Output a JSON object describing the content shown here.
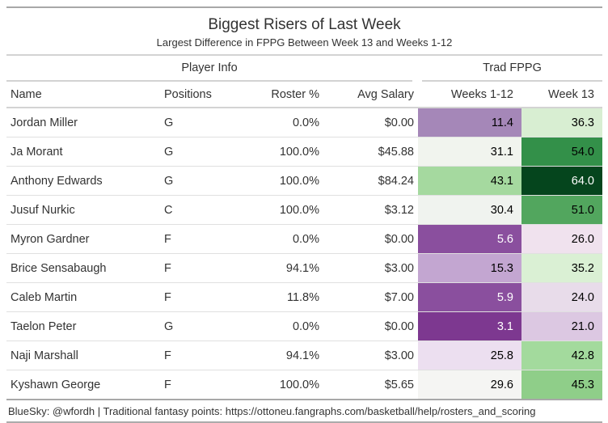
{
  "header": {
    "title": "Biggest Risers of Last Week",
    "subtitle": "Largest Difference in FPPG Between Week 13 and Weeks 1-12"
  },
  "table": {
    "spanners": {
      "player_info": "Player Info",
      "trad_fppg": "Trad FPPG"
    },
    "columns": {
      "name": "Name",
      "positions": "Positions",
      "roster": "Roster %",
      "salary": "Avg Salary",
      "weeks_1_12": "Weeks 1-12",
      "week_13": "Week 13"
    },
    "heatmap_colors": {
      "dark_purple": "#7d3890",
      "mid_purple": "#8a4f9e",
      "lavender": "#a587b8",
      "light_purple": "#c3a6d1",
      "near_white": "#f1f4ee",
      "light_green": "#a5d99f",
      "mid_green": "#339049",
      "dark_green": "#05451d"
    },
    "rows": [
      {
        "name": "Jordan Miller",
        "positions": "G",
        "roster": "0.0%",
        "salary": "$0.00",
        "weeks_1_12": {
          "value": "11.4",
          "bg": "#a587b8",
          "fg": "#000000"
        },
        "week_13": {
          "value": "36.3",
          "bg": "#d8eed2",
          "fg": "#000000"
        }
      },
      {
        "name": "Ja Morant",
        "positions": "G",
        "roster": "100.0%",
        "salary": "$45.88",
        "weeks_1_12": {
          "value": "31.1",
          "bg": "#f1f4ee",
          "fg": "#000000"
        },
        "week_13": {
          "value": "54.0",
          "bg": "#339049",
          "fg": "#000000"
        }
      },
      {
        "name": "Anthony Edwards",
        "positions": "G",
        "roster": "100.0%",
        "salary": "$84.24",
        "weeks_1_12": {
          "value": "43.1",
          "bg": "#a5d99f",
          "fg": "#000000"
        },
        "week_13": {
          "value": "64.0",
          "bg": "#05451d",
          "fg": "#ffffff"
        }
      },
      {
        "name": "Jusuf Nurkic",
        "positions": "C",
        "roster": "100.0%",
        "salary": "$3.12",
        "weeks_1_12": {
          "value": "30.4",
          "bg": "#f0f3ef",
          "fg": "#000000"
        },
        "week_13": {
          "value": "51.0",
          "bg": "#52a65e",
          "fg": "#000000"
        }
      },
      {
        "name": "Myron Gardner",
        "positions": "F",
        "roster": "0.0%",
        "salary": "$0.00",
        "weeks_1_12": {
          "value": "5.6",
          "bg": "#8a4f9e",
          "fg": "#ffffff"
        },
        "week_13": {
          "value": "26.0",
          "bg": "#f0e2ee",
          "fg": "#000000"
        }
      },
      {
        "name": "Brice Sensabaugh",
        "positions": "F",
        "roster": "94.1%",
        "salary": "$3.00",
        "weeks_1_12": {
          "value": "15.3",
          "bg": "#c3a6d1",
          "fg": "#000000"
        },
        "week_13": {
          "value": "35.2",
          "bg": "#daf0d4",
          "fg": "#000000"
        }
      },
      {
        "name": "Caleb Martin",
        "positions": "F",
        "roster": "11.8%",
        "salary": "$7.00",
        "weeks_1_12": {
          "value": "5.9",
          "bg": "#8a4f9e",
          "fg": "#ffffff"
        },
        "week_13": {
          "value": "24.0",
          "bg": "#e8dcea",
          "fg": "#000000"
        }
      },
      {
        "name": "Taelon Peter",
        "positions": "G",
        "roster": "0.0%",
        "salary": "$0.00",
        "weeks_1_12": {
          "value": "3.1",
          "bg": "#7d3890",
          "fg": "#ffffff"
        },
        "week_13": {
          "value": "21.0",
          "bg": "#dcc8e2",
          "fg": "#000000"
        }
      },
      {
        "name": "Naji Marshall",
        "positions": "F",
        "roster": "94.1%",
        "salary": "$3.00",
        "weeks_1_12": {
          "value": "25.8",
          "bg": "#ecdff0",
          "fg": "#000000"
        },
        "week_13": {
          "value": "42.8",
          "bg": "#a3da9d",
          "fg": "#000000"
        }
      },
      {
        "name": "Kyshawn George",
        "positions": "F",
        "roster": "100.0%",
        "salary": "$5.65",
        "weeks_1_12": {
          "value": "29.6",
          "bg": "#f5f5f3",
          "fg": "#000000"
        },
        "week_13": {
          "value": "45.3",
          "bg": "#8fce89",
          "fg": "#000000"
        }
      }
    ]
  },
  "footer": {
    "source_note": "BlueSky: @wfordh | Traditional fantasy points: https://ottoneu.fangraphs.com/basketball/help/rosters_and_scoring"
  },
  "chart_data": {
    "type": "table",
    "title": "Biggest Risers of Last Week",
    "subtitle": "Largest Difference in FPPG Between Week 13 and Weeks 1-12",
    "column_groups": [
      {
        "label": "Player Info",
        "columns": [
          "Name",
          "Positions",
          "Roster %",
          "Avg Salary"
        ]
      },
      {
        "label": "Trad FPPG",
        "columns": [
          "Weeks 1-12",
          "Week 13"
        ]
      }
    ],
    "columns": [
      "Name",
      "Positions",
      "Roster %",
      "Avg Salary",
      "Weeks 1-12",
      "Week 13"
    ],
    "rows": [
      [
        "Jordan Miller",
        "G",
        0.0,
        0.0,
        11.4,
        36.3
      ],
      [
        "Ja Morant",
        "G",
        100.0,
        45.88,
        31.1,
        54.0
      ],
      [
        "Anthony Edwards",
        "G",
        100.0,
        84.24,
        43.1,
        64.0
      ],
      [
        "Jusuf Nurkic",
        "C",
        100.0,
        3.12,
        30.4,
        51.0
      ],
      [
        "Myron Gardner",
        "F",
        0.0,
        0.0,
        5.6,
        26.0
      ],
      [
        "Brice Sensabaugh",
        "F",
        94.1,
        3.0,
        15.3,
        35.2
      ],
      [
        "Caleb Martin",
        "F",
        11.8,
        7.0,
        5.9,
        24.0
      ],
      [
        "Taelon Peter",
        "G",
        0.0,
        0.0,
        3.1,
        21.0
      ],
      [
        "Naji Marshall",
        "F",
        94.1,
        3.0,
        25.8,
        42.8
      ],
      [
        "Kyshawn George",
        "F",
        100.0,
        5.65,
        29.6,
        45.3
      ]
    ],
    "heatmap_columns": [
      "Weeks 1-12",
      "Week 13"
    ],
    "palette": "diverging purple-to-green (PRGn), low values purple, high values green",
    "source_note": "BlueSky: @wfordh | Traditional fantasy points: https://ottoneu.fangraphs.com/basketball/help/rosters_and_scoring"
  }
}
